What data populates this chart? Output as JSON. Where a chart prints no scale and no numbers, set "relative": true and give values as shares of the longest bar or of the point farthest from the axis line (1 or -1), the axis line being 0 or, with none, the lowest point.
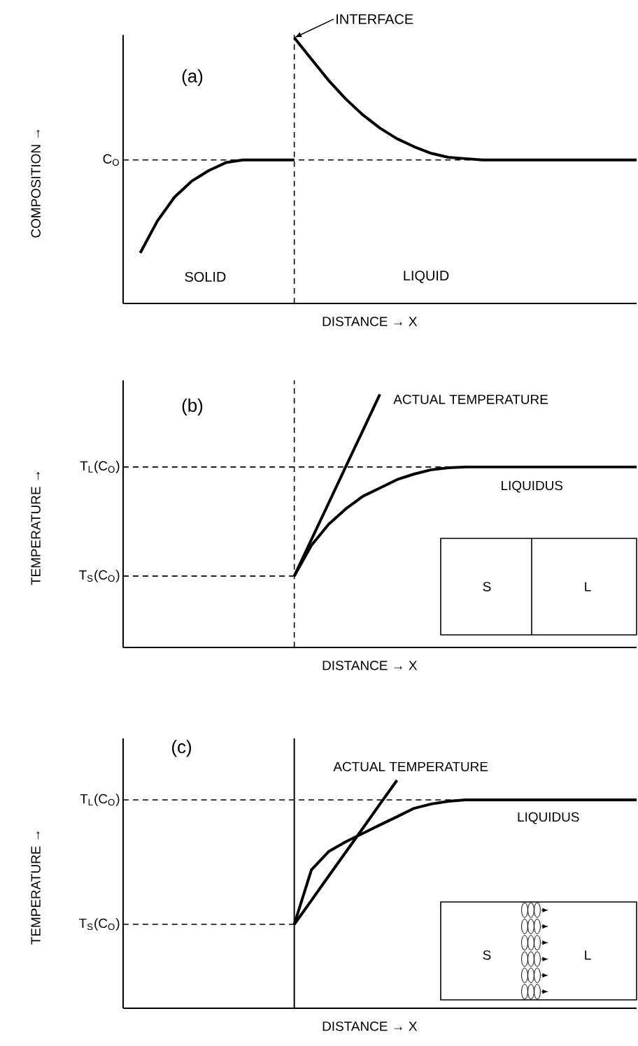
{
  "chart_data": [
    {
      "type": "line",
      "relative": true,
      "xlabel": "DISTANCE → X",
      "ylabel": "COMPOSITION →",
      "categories": [
        null,
        null,
        null,
        null,
        null,
        null,
        null,
        null,
        null,
        null,
        null,
        null,
        null,
        null,
        null,
        null,
        null,
        null,
        null,
        null,
        null,
        null,
        null,
        null,
        null,
        null,
        null,
        null,
        null,
        null,
        null
      ],
      "annotations": [
        "(a)",
        "INTERFACE",
        "SOLID",
        "LIQUID"
      ],
      "ref_lines": [
        {
          "axis": "y",
          "value": 0.54,
          "label": "C$_{O}$",
          "line_style": "dashed"
        }
      ],
      "series": [
        {
          "color": "#000000",
          "values": [
            null,
            0.19,
            0.31,
            0.4,
            0.46,
            0.5,
            0.53,
            0.54,
            0.54,
            0.54,
            0.54,
            null,
            null,
            null,
            null,
            null,
            null,
            null,
            null,
            null,
            null,
            null,
            null,
            null,
            null,
            null,
            null,
            null,
            null,
            null,
            null
          ]
        },
        {
          "color": "#000000",
          "values": [
            null,
            null,
            null,
            null,
            null,
            null,
            null,
            null,
            null,
            null,
            1.0,
            0.92,
            0.84,
            0.77,
            0.71,
            0.66,
            0.62,
            0.59,
            0.565,
            0.55,
            0.545,
            0.54,
            0.54,
            0.54,
            0.54,
            0.54,
            0.54,
            0.54,
            0.54,
            0.54,
            0.54
          ]
        }
      ]
    },
    {
      "type": "line",
      "relative": true,
      "xlabel": "DISTANCE → X",
      "ylabel": "TEMPERATURE →",
      "categories": [
        null,
        null,
        null,
        null,
        null,
        null,
        null,
        null,
        null,
        null,
        null,
        null,
        null,
        null,
        null,
        null,
        null,
        null,
        null,
        null,
        null,
        null,
        null,
        null,
        null,
        null,
        null,
        null,
        null,
        null,
        null
      ],
      "annotations": [
        "(b)",
        "S",
        "L"
      ],
      "ref_lines": [
        {
          "axis": "y",
          "value": 0.713,
          "label": "T$_{L}$(C$_{O}$)",
          "line_style": "dashed"
        },
        {
          "axis": "y",
          "value": 0.282,
          "label": "T$_{S}$(C$_{O}$)",
          "line_style": "dashed"
        }
      ],
      "series": [
        {
          "name": "ACTUAL TEMPERATURE",
          "color": "#000000",
          "values": [
            null,
            null,
            null,
            null,
            null,
            null,
            null,
            null,
            null,
            null,
            0.282,
            0.426,
            0.569,
            0.713,
            0.856,
            1.0,
            null,
            null,
            null,
            null,
            null,
            null,
            null,
            null,
            null,
            null,
            null,
            null,
            null,
            null,
            null
          ]
        },
        {
          "name": "LIQUIDUS",
          "color": "#000000",
          "values": [
            null,
            null,
            null,
            null,
            null,
            null,
            null,
            null,
            null,
            null,
            0.282,
            0.403,
            0.486,
            0.547,
            0.597,
            0.63,
            0.663,
            0.685,
            0.702,
            0.71,
            0.713,
            0.713,
            0.713,
            0.713,
            0.713,
            0.713,
            0.713,
            0.713,
            0.713,
            0.713,
            0.713
          ]
        }
      ]
    },
    {
      "type": "line",
      "relative": true,
      "xlabel": "DISTANCE → X",
      "ylabel": "TEMPERATURE →",
      "categories": [
        null,
        null,
        null,
        null,
        null,
        null,
        null,
        null,
        null,
        null,
        null,
        null,
        null,
        null,
        null,
        null,
        null,
        null,
        null,
        null,
        null,
        null,
        null,
        null,
        null,
        null,
        null,
        null,
        null,
        null,
        null
      ],
      "annotations": [
        "(c)",
        "S",
        "L"
      ],
      "ref_lines": [
        {
          "axis": "y",
          "value": 0.914,
          "label": "T$_{L}$(C$_{O}$)",
          "line_style": "dashed"
        },
        {
          "axis": "y",
          "value": 0.368,
          "label": "T$_{S}$(C$_{O}$)",
          "line_style": "dashed"
        }
      ],
      "series": [
        {
          "name": "ACTUAL TEMPERATURE",
          "color": "#000000",
          "values": [
            null,
            null,
            null,
            null,
            null,
            null,
            null,
            null,
            null,
            null,
            0.368,
            0.473,
            0.579,
            0.684,
            0.789,
            0.895,
            1.0,
            null,
            null,
            null,
            null,
            null,
            null,
            null,
            null,
            null,
            null,
            null,
            null,
            null,
            null
          ]
        },
        {
          "name": "LIQUIDUS",
          "color": "#000000",
          "values": [
            null,
            null,
            null,
            null,
            null,
            null,
            null,
            null,
            null,
            null,
            0.368,
            0.607,
            0.687,
            0.73,
            0.767,
            0.804,
            0.84,
            0.877,
            0.896,
            0.908,
            0.914,
            0.914,
            0.914,
            0.914,
            0.914,
            0.914,
            0.914,
            0.914,
            0.914,
            0.914,
            0.914
          ]
        }
      ]
    }
  ]
}
